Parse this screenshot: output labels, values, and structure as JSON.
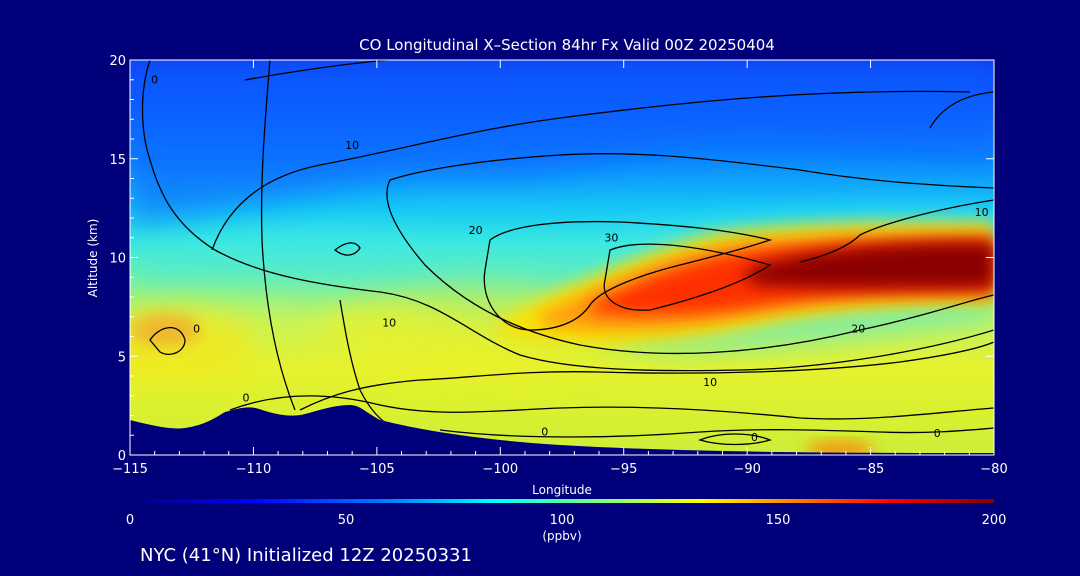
{
  "colors": {
    "background": "#00007a",
    "text": "#ffffff",
    "terrain": "#00007a",
    "contour": "#000000"
  },
  "chart_data": {
    "type": "heatmap",
    "title": "CO Longitudinal X–Section 84hr  Fx Valid 00Z 20250404",
    "xlabel": "Longitude",
    "ylabel": "Altitude (km)",
    "xlim": [
      -115,
      -80
    ],
    "ylim": [
      0,
      20
    ],
    "x_ticks": [
      -115,
      -110,
      -105,
      -100,
      -95,
      -90,
      -85,
      -80
    ],
    "x_tick_labels": [
      "−115",
      "−110",
      "−105",
      "−100",
      "−95",
      "−90",
      "−85",
      "−80"
    ],
    "y_ticks": [
      0,
      5,
      10,
      15,
      20
    ],
    "y_tick_labels": [
      "0",
      "5",
      "10",
      "15",
      "20"
    ],
    "colorbar": {
      "min": 0,
      "max": 200,
      "ticks": [
        0,
        50,
        100,
        150,
        200
      ],
      "tick_labels": [
        "0",
        "50",
        "100",
        "150",
        "200"
      ],
      "unit": "(ppbv)",
      "colors": [
        "#00007f",
        "#0000ff",
        "#0080ff",
        "#00ffff",
        "#80ff80",
        "#ffff00",
        "#ff8000",
        "#ff0000",
        "#800000"
      ]
    },
    "plume": {
      "core_longitude_range": [
        -91,
        -80
      ],
      "core_altitude_km": 9.8,
      "peak_value": 200
    },
    "contours": [
      {
        "label": "0",
        "lon": -114,
        "alt": 18.8
      },
      {
        "label": "10",
        "lon": -106,
        "alt": 15.5
      },
      {
        "label": "20",
        "lon": -101,
        "alt": 11.2
      },
      {
        "label": "30",
        "lon": -95.5,
        "alt": 10.8
      },
      {
        "label": "10",
        "lon": -80.5,
        "alt": 12.1
      },
      {
        "label": "0",
        "lon": -112.3,
        "alt": 6.2
      },
      {
        "label": "10",
        "lon": -104.5,
        "alt": 6.5
      },
      {
        "label": "20",
        "lon": -85.5,
        "alt": 6.2
      },
      {
        "label": "10",
        "lon": -91.5,
        "alt": 3.5
      },
      {
        "label": "0",
        "lon": -110.3,
        "alt": 2.7
      },
      {
        "label": "0",
        "lon": -98.2,
        "alt": 1.0
      },
      {
        "label": "0",
        "lon": -89.7,
        "alt": 0.7
      },
      {
        "label": "0",
        "lon": -82.3,
        "alt": 0.9
      }
    ]
  },
  "footer": {
    "caption": "NYC (41°N) Initialized 12Z 20250331"
  }
}
